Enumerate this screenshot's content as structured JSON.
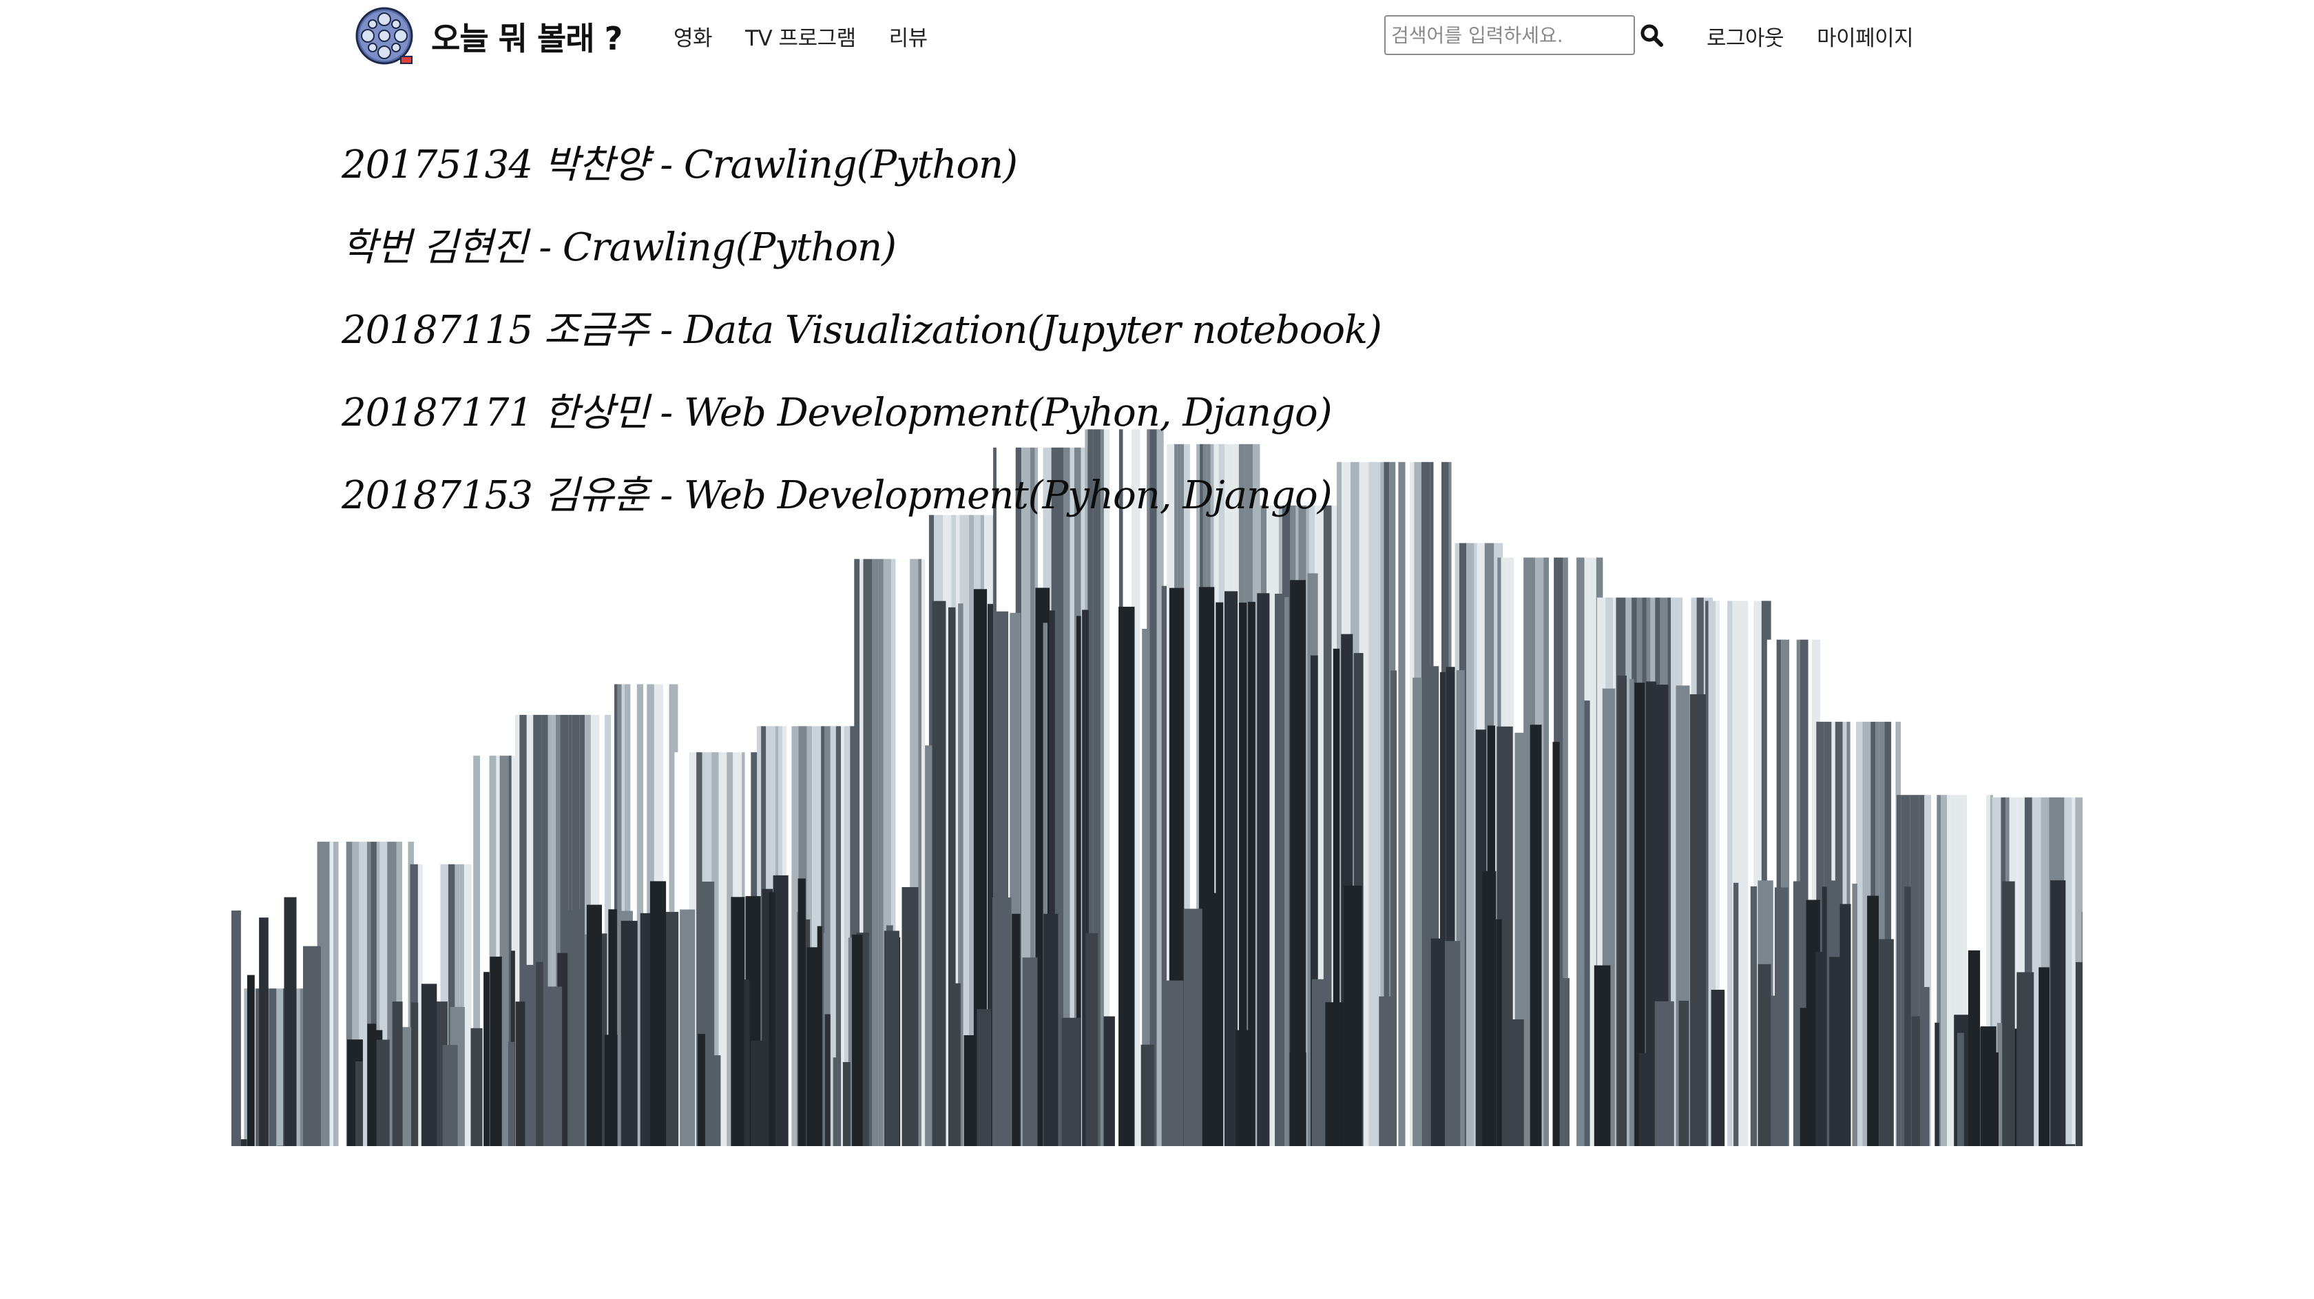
{
  "brand": {
    "title": "오늘 뭐 볼래 ?",
    "logo_icon": "film-reel-icon"
  },
  "nav": {
    "links": [
      {
        "label": "영화"
      },
      {
        "label": "TV 프로그램"
      },
      {
        "label": "리뷰"
      }
    ]
  },
  "search": {
    "placeholder": "검색어를 입력하세요.",
    "value": "",
    "icon": "search-icon"
  },
  "user_menu": {
    "logout_label": "로그아웃",
    "mypage_label": "마이페이지"
  },
  "credits": [
    {
      "text": "20175134 박찬양 - Crawling(Python)"
    },
    {
      "text": "학번 김현진 - Crawling(Python)"
    },
    {
      "text": "20187115 조금주 - Data Visualization(Jupyter notebook)"
    },
    {
      "text": "20187171 한상민 - Web Development(Pyhon, Django)"
    },
    {
      "text": "20187153 김유훈 - Web Development(Pyhon, Django)"
    }
  ],
  "colors": {
    "text": "#0c0c0c",
    "building_dark": "#2b3136",
    "building_mid": "#5a646c",
    "building_light": "#c9d2d8",
    "search_border": "#8a8a8a"
  }
}
